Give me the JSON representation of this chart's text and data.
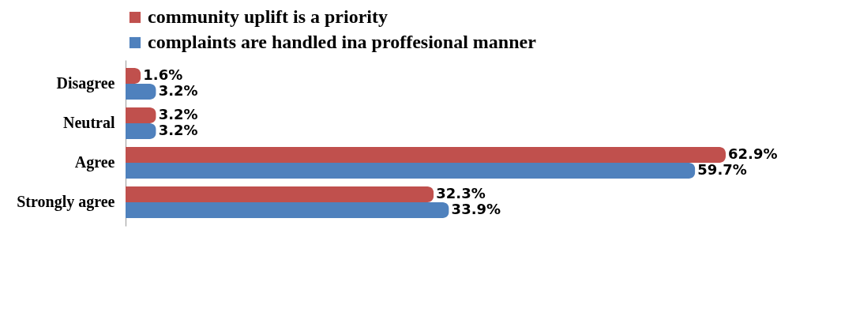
{
  "chart_data": {
    "type": "bar",
    "orientation": "horizontal",
    "categories": [
      "Disagree",
      "Neutral",
      "Agree",
      "Strongly agree"
    ],
    "series": [
      {
        "name": "community uplift is a priority",
        "color": "#c0504d",
        "values": [
          1.6,
          3.2,
          62.9,
          32.3
        ],
        "value_labels": [
          "1.6%",
          "3.2%",
          "62.9%",
          "32.3%"
        ]
      },
      {
        "name": "complaints are handled ina proffesional manner",
        "color": "#4f81bd",
        "values": [
          3.2,
          3.2,
          59.7,
          33.9
        ],
        "value_labels": [
          "3.2%",
          "3.2%",
          "59.7%",
          "33.9%"
        ]
      }
    ],
    "legend": "top"
  }
}
